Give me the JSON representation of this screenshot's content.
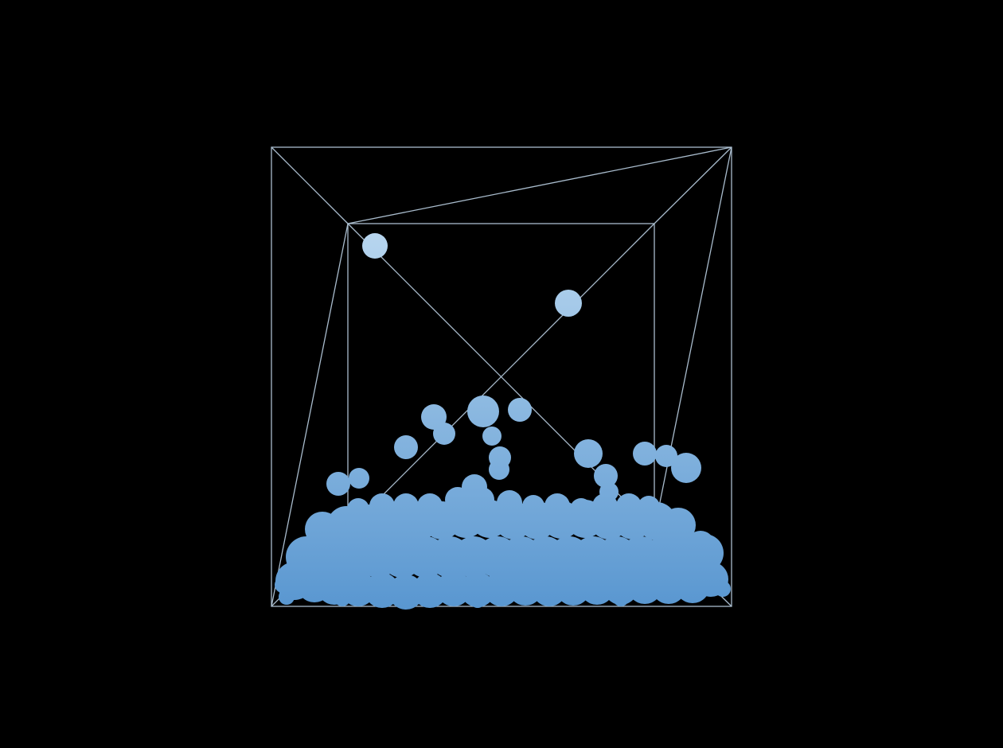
{
  "scene": {
    "background_color": "#000000",
    "wireframe_color": "#a9bccd",
    "particle_color_top": "#b8d6ef",
    "particle_color_bottom": "#5896d0",
    "visible_text": []
  }
}
